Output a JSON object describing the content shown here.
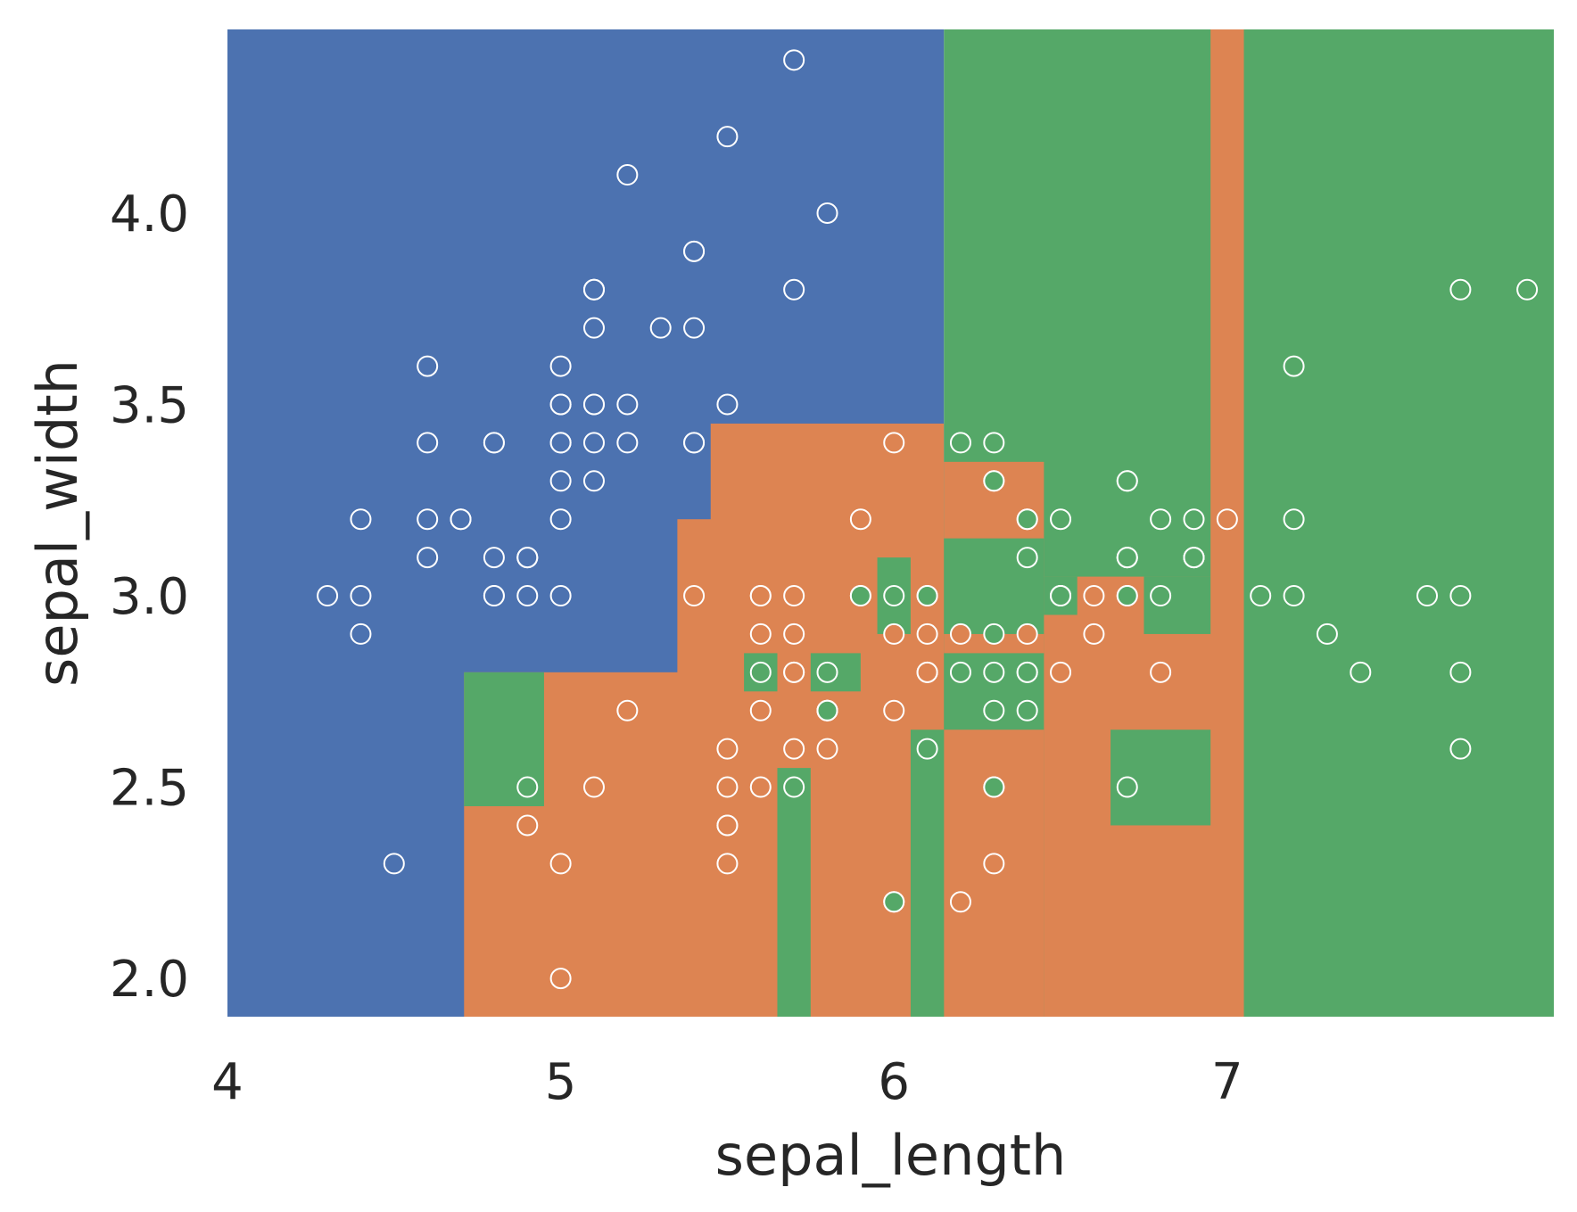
{
  "chart_data": {
    "type": "scatter",
    "title": "",
    "xlabel": "sepal_length",
    "ylabel": "sepal_width",
    "xlim": [
      4.0,
      7.98
    ],
    "ylim": [
      1.9,
      4.48
    ],
    "x_ticks": [
      "4",
      "5",
      "6",
      "7"
    ],
    "x_tick_values": [
      4,
      5,
      6,
      7
    ],
    "y_ticks": [
      "2.0",
      "2.5",
      "3.0",
      "3.5",
      "4.0"
    ],
    "y_tick_values": [
      2.0,
      2.5,
      3.0,
      3.5,
      4.0
    ],
    "grid": false,
    "legend": "none",
    "colors": {
      "class0": "#4c72b0",
      "class1": "#dd8452",
      "class2": "#55a868",
      "marker_edge": "#ffffff"
    },
    "decision_regions": [
      {
        "class": 0,
        "x": [
          4.0,
          6.15
        ],
        "y": [
          1.9,
          4.48
        ]
      },
      {
        "class": 1,
        "x": [
          4.71,
          6.15
        ],
        "y": [
          1.9,
          2.8
        ]
      },
      {
        "class": 1,
        "x": [
          5.35,
          6.15
        ],
        "y": [
          1.9,
          3.2
        ]
      },
      {
        "class": 1,
        "x": [
          5.45,
          6.15
        ],
        "y": [
          1.9,
          3.45
        ]
      },
      {
        "class": 2,
        "x": [
          6.15,
          7.98
        ],
        "y": [
          1.9,
          4.48
        ]
      },
      {
        "class": 1,
        "x": [
          6.15,
          6.45
        ],
        "y": [
          1.9,
          3.35
        ]
      },
      {
        "class": 1,
        "x": [
          6.45,
          7.0
        ],
        "y": [
          1.9,
          3.05
        ]
      },
      {
        "class": 1,
        "x": [
          6.95,
          7.05
        ],
        "y": [
          1.9,
          4.48
        ]
      },
      {
        "class": 2,
        "x": [
          4.71,
          4.95
        ],
        "y": [
          2.45,
          2.8
        ]
      },
      {
        "class": 2,
        "x": [
          5.55,
          5.65
        ],
        "y": [
          2.75,
          2.85
        ]
      },
      {
        "class": 2,
        "x": [
          5.65,
          5.75
        ],
        "y": [
          1.9,
          2.55
        ]
      },
      {
        "class": 2,
        "x": [
          5.75,
          5.9
        ],
        "y": [
          2.75,
          2.85
        ]
      },
      {
        "class": 2,
        "x": [
          5.95,
          6.05
        ],
        "y": [
          2.9,
          3.1
        ]
      },
      {
        "class": 2,
        "x": [
          6.05,
          6.15
        ],
        "y": [
          1.9,
          2.65
        ]
      },
      {
        "class": 2,
        "x": [
          6.15,
          6.45
        ],
        "y": [
          2.9,
          3.15
        ]
      },
      {
        "class": 2,
        "x": [
          6.15,
          6.45
        ],
        "y": [
          2.65,
          2.85
        ]
      },
      {
        "class": 2,
        "x": [
          6.45,
          6.55
        ],
        "y": [
          2.95,
          3.05
        ]
      },
      {
        "class": 2,
        "x": [
          6.65,
          6.95
        ],
        "y": [
          2.4,
          2.65
        ]
      },
      {
        "class": 2,
        "x": [
          6.75,
          6.95
        ],
        "y": [
          2.9,
          3.05
        ]
      }
    ],
    "series": [
      {
        "class": 0,
        "points": [
          [
            5.1,
            3.5
          ],
          [
            4.9,
            3.0
          ],
          [
            4.7,
            3.2
          ],
          [
            4.6,
            3.1
          ],
          [
            5.0,
            3.6
          ],
          [
            5.4,
            3.9
          ],
          [
            4.6,
            3.4
          ],
          [
            5.0,
            3.4
          ],
          [
            4.4,
            2.9
          ],
          [
            4.9,
            3.1
          ],
          [
            5.4,
            3.7
          ],
          [
            4.8,
            3.4
          ],
          [
            4.8,
            3.0
          ],
          [
            4.3,
            3.0
          ],
          [
            5.8,
            4.0
          ],
          [
            5.7,
            4.4
          ],
          [
            5.4,
            3.9
          ],
          [
            5.1,
            3.5
          ],
          [
            5.7,
            3.8
          ],
          [
            5.1,
            3.8
          ],
          [
            5.4,
            3.4
          ],
          [
            5.1,
            3.7
          ],
          [
            4.6,
            3.6
          ],
          [
            5.1,
            3.3
          ],
          [
            4.8,
            3.4
          ],
          [
            5.0,
            3.0
          ],
          [
            5.0,
            3.4
          ],
          [
            5.2,
            3.5
          ],
          [
            5.2,
            3.4
          ],
          [
            4.7,
            3.2
          ],
          [
            4.8,
            3.1
          ],
          [
            5.4,
            3.4
          ],
          [
            5.2,
            4.1
          ],
          [
            5.5,
            4.2
          ],
          [
            4.9,
            3.1
          ],
          [
            5.0,
            3.2
          ],
          [
            5.5,
            3.5
          ],
          [
            4.9,
            3.1
          ],
          [
            4.4,
            3.0
          ],
          [
            5.1,
            3.4
          ],
          [
            5.0,
            3.5
          ],
          [
            4.5,
            2.3
          ],
          [
            4.4,
            3.2
          ],
          [
            5.0,
            3.5
          ],
          [
            5.1,
            3.8
          ],
          [
            4.8,
            3.0
          ],
          [
            5.1,
            3.8
          ],
          [
            4.6,
            3.2
          ],
          [
            5.3,
            3.7
          ],
          [
            5.0,
            3.3
          ]
        ]
      },
      {
        "class": 1,
        "points": [
          [
            7.0,
            3.2
          ],
          [
            6.4,
            3.2
          ],
          [
            6.9,
            3.1
          ],
          [
            5.5,
            2.3
          ],
          [
            6.5,
            2.8
          ],
          [
            5.7,
            2.8
          ],
          [
            6.3,
            3.3
          ],
          [
            4.9,
            2.4
          ],
          [
            6.6,
            2.9
          ],
          [
            5.2,
            2.7
          ],
          [
            5.0,
            2.0
          ],
          [
            5.9,
            3.0
          ],
          [
            6.0,
            2.2
          ],
          [
            6.1,
            2.9
          ],
          [
            5.6,
            2.9
          ],
          [
            6.7,
            3.1
          ],
          [
            5.6,
            3.0
          ],
          [
            5.8,
            2.7
          ],
          [
            6.2,
            2.2
          ],
          [
            5.6,
            2.5
          ],
          [
            5.9,
            3.2
          ],
          [
            6.1,
            2.8
          ],
          [
            6.3,
            2.5
          ],
          [
            6.1,
            2.8
          ],
          [
            6.4,
            2.9
          ],
          [
            6.6,
            3.0
          ],
          [
            6.8,
            2.8
          ],
          [
            6.7,
            3.0
          ],
          [
            6.0,
            2.9
          ],
          [
            5.7,
            2.6
          ],
          [
            5.5,
            2.4
          ],
          [
            5.5,
            2.4
          ],
          [
            5.8,
            2.7
          ],
          [
            6.0,
            2.7
          ],
          [
            5.4,
            3.0
          ],
          [
            6.0,
            3.4
          ],
          [
            6.7,
            3.1
          ],
          [
            6.3,
            2.3
          ],
          [
            5.6,
            3.0
          ],
          [
            5.5,
            2.5
          ],
          [
            5.5,
            2.6
          ],
          [
            6.1,
            3.0
          ],
          [
            5.8,
            2.6
          ],
          [
            5.0,
            2.3
          ],
          [
            5.6,
            2.7
          ],
          [
            5.7,
            3.0
          ],
          [
            5.7,
            2.9
          ],
          [
            6.2,
            2.9
          ],
          [
            5.1,
            2.5
          ],
          [
            5.7,
            2.8
          ]
        ]
      },
      {
        "class": 2,
        "points": [
          [
            6.3,
            3.3
          ],
          [
            5.8,
            2.7
          ],
          [
            7.1,
            3.0
          ],
          [
            6.3,
            2.9
          ],
          [
            6.5,
            3.0
          ],
          [
            7.6,
            3.0
          ],
          [
            4.9,
            2.5
          ],
          [
            7.3,
            2.9
          ],
          [
            6.7,
            2.5
          ],
          [
            7.2,
            3.6
          ],
          [
            6.5,
            3.2
          ],
          [
            6.4,
            2.7
          ],
          [
            6.8,
            3.0
          ],
          [
            5.7,
            2.5
          ],
          [
            5.8,
            2.8
          ],
          [
            6.4,
            3.2
          ],
          [
            6.5,
            3.0
          ],
          [
            7.7,
            3.8
          ],
          [
            7.7,
            2.6
          ],
          [
            6.0,
            2.2
          ],
          [
            6.9,
            3.2
          ],
          [
            5.6,
            2.8
          ],
          [
            7.7,
            2.8
          ],
          [
            6.3,
            2.7
          ],
          [
            6.7,
            3.3
          ],
          [
            7.2,
            3.2
          ],
          [
            6.2,
            2.8
          ],
          [
            6.1,
            3.0
          ],
          [
            6.4,
            2.8
          ],
          [
            7.2,
            3.0
          ],
          [
            7.4,
            2.8
          ],
          [
            7.9,
            3.8
          ],
          [
            6.4,
            2.8
          ],
          [
            6.3,
            2.8
          ],
          [
            6.1,
            2.6
          ],
          [
            7.7,
            3.0
          ],
          [
            6.3,
            3.4
          ],
          [
            6.4,
            3.1
          ],
          [
            6.0,
            3.0
          ],
          [
            6.9,
            3.1
          ],
          [
            6.7,
            3.1
          ],
          [
            6.9,
            3.1
          ],
          [
            5.8,
            2.7
          ],
          [
            6.8,
            3.2
          ],
          [
            6.7,
            3.3
          ],
          [
            6.7,
            3.0
          ],
          [
            6.3,
            2.5
          ],
          [
            6.5,
            3.0
          ],
          [
            6.2,
            3.4
          ],
          [
            5.9,
            3.0
          ]
        ]
      }
    ]
  }
}
